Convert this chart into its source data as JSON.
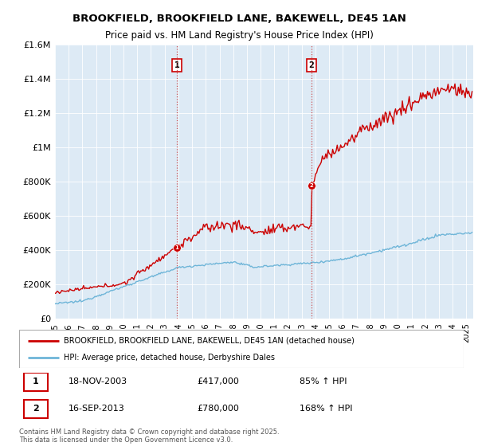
{
  "title": "BROOKFIELD, BROOKFIELD LANE, BAKEWELL, DE45 1AN",
  "subtitle": "Price paid vs. HM Land Registry's House Price Index (HPI)",
  "ylim": [
    0,
    1600000
  ],
  "yticks": [
    0,
    200000,
    400000,
    600000,
    800000,
    1000000,
    1200000,
    1400000,
    1600000
  ],
  "ytick_labels": [
    "£0",
    "£200K",
    "£400K",
    "£600K",
    "£800K",
    "£1M",
    "£1.2M",
    "£1.4M",
    "£1.6M"
  ],
  "xlim_start": 1995.0,
  "xlim_end": 2025.5,
  "sale1_date": 2003.88,
  "sale1_label": "1",
  "sale1_price": 417000,
  "sale1_text": "18-NOV-2003",
  "sale1_pct": "85%",
  "sale2_date": 2013.71,
  "sale2_label": "2",
  "sale2_price": 780000,
  "sale2_text": "16-SEP-2013",
  "sale2_pct": "168%",
  "property_color": "#cc0000",
  "hpi_color": "#6eb5d8",
  "background_color": "#ddeaf5",
  "grid_color": "#ffffff",
  "legend_label_property": "BROOKFIELD, BROOKFIELD LANE, BAKEWELL, DE45 1AN (detached house)",
  "legend_label_hpi": "HPI: Average price, detached house, Derbyshire Dales",
  "footer": "Contains HM Land Registry data © Crown copyright and database right 2025.\nThis data is licensed under the Open Government Licence v3.0."
}
